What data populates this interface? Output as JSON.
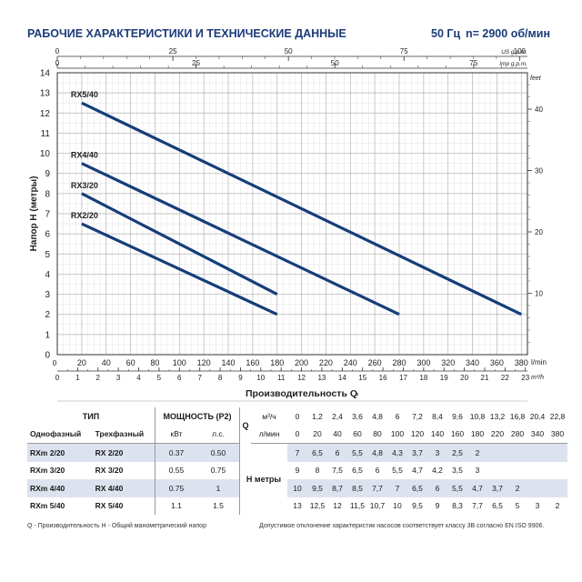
{
  "header": {
    "title": "РАБОЧИЕ ХАРАКТЕРИСТИКИ И ТЕХНИЧЕСКИЕ ДАННЫЕ",
    "frequency": "50 Гц",
    "speed": "n= 2900 об/мин"
  },
  "chart_data": {
    "type": "line",
    "title": "РАБОЧИЕ ХАРАКТЕРИСТИКИ И ТЕХНИЧЕСКИЕ ДАННЫЕ",
    "xlabel": "Производительность Q",
    "ylabel": "Напор H (метры)",
    "x_unit": "l/min",
    "x_unit_m3h": "m³/h",
    "y_right_unit": "feet",
    "top_axis_us_label": "US g.p.m.",
    "top_axis_imp_label": "Imp g.p.m.",
    "xlim": [
      0,
      385
    ],
    "ylim": [
      0,
      14
    ],
    "x_ticks": [
      20,
      40,
      60,
      80,
      100,
      120,
      140,
      160,
      180,
      200,
      220,
      240,
      260,
      280,
      300,
      320,
      340,
      360,
      380
    ],
    "x_ticks_m3h": [
      1,
      2,
      3,
      4,
      5,
      6,
      7,
      8,
      9,
      10,
      11,
      12,
      13,
      14,
      15,
      16,
      17,
      18,
      19,
      20,
      21,
      22,
      23
    ],
    "x_zero_label": "0",
    "y_ticks": [
      0,
      1,
      2,
      3,
      4,
      5,
      6,
      7,
      8,
      9,
      10,
      11,
      12,
      13,
      14
    ],
    "y_right_ticks": [
      10,
      20,
      30,
      40
    ],
    "y_right_unit_short": "feet",
    "top_us_ticks": [
      0,
      25,
      50,
      75,
      100
    ],
    "top_imp_ticks": [
      0,
      25,
      50,
      75
    ],
    "series": [
      {
        "name": "RX5/40",
        "x": [
          20,
          380
        ],
        "y": [
          12.5,
          2
        ]
      },
      {
        "name": "RX4/40",
        "x": [
          20,
          280
        ],
        "y": [
          9.5,
          2
        ]
      },
      {
        "name": "RX3/20",
        "x": [
          20,
          180
        ],
        "y": [
          8,
          3
        ]
      },
      {
        "name": "RX2/20",
        "x": [
          20,
          180
        ],
        "y": [
          6.5,
          2
        ]
      }
    ],
    "grid": true,
    "line_color": "#163d7a"
  },
  "table": {
    "type_header": "ТИП",
    "power_header": "МОЩНОСТЬ (P2)",
    "single_phase": "Однофазный",
    "three_phase": "Трехфазный",
    "kw": "кВт",
    "hp": "л.с.",
    "q_label": "Q",
    "m3h_label": "м³/ч",
    "lmin_label": "л/мин",
    "h_label": "H метры",
    "q_m3h": [
      "0",
      "1,2",
      "2,4",
      "3,6",
      "4,8",
      "6",
      "7,2",
      "8,4",
      "9,6",
      "10,8",
      "13,2",
      "16,8",
      "20,4",
      "22,8"
    ],
    "q_lmin": [
      "0",
      "20",
      "40",
      "60",
      "80",
      "100",
      "120",
      "140",
      "160",
      "180",
      "220",
      "280",
      "340",
      "380"
    ],
    "rows": [
      {
        "single": "RXm 2/20",
        "three": "RX 2/20",
        "kw": "0.37",
        "hp": "0.50",
        "h": [
          "7",
          "6,5",
          "6",
          "5,5",
          "4,8",
          "4,3",
          "3,7",
          "3",
          "2,5",
          "2",
          "",
          "",
          "",
          ""
        ]
      },
      {
        "single": "RXm 3/20",
        "three": "RX 3/20",
        "kw": "0.55",
        "hp": "0.75",
        "h": [
          "9",
          "8",
          "7,5",
          "6,5",
          "6",
          "5,5",
          "4,7",
          "4,2",
          "3,5",
          "3",
          "",
          "",
          "",
          ""
        ]
      },
      {
        "single": "RXm 4/40",
        "three": "RX 4/40",
        "kw": "0.75",
        "hp": "1",
        "h": [
          "10",
          "9,5",
          "8,7",
          "8,5",
          "7,7",
          "7",
          "6,5",
          "6",
          "5,5",
          "4,7",
          "3,7",
          "2",
          "",
          ""
        ]
      },
      {
        "single": "RXm 5/40",
        "three": "RX 5/40",
        "kw": "1.1",
        "hp": "1.5",
        "h": [
          "13",
          "12,5",
          "12",
          "11,5",
          "10,7",
          "10",
          "9,5",
          "9",
          "8,3",
          "7,7",
          "6,5",
          "5",
          "3",
          "2"
        ]
      }
    ]
  },
  "footnotes": {
    "left": "Q - Производительность   H - Общий манометрический напор",
    "right": "Допустимое отклонение характеристик насосов соответствует классу 3B согласно EN ISO 9906."
  }
}
